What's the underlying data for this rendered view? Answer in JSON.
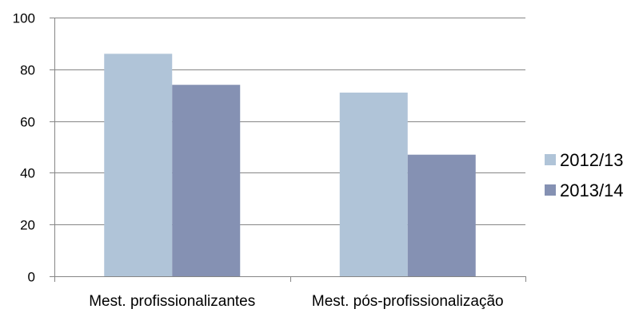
{
  "chart_data": {
    "type": "bar",
    "categories": [
      "Mest. profissionalizantes",
      "Mest. pós-profissionalização"
    ],
    "series": [
      {
        "name": "2012/13",
        "values": [
          86,
          71
        ],
        "color": "#b0c4d8"
      },
      {
        "name": "2013/14",
        "values": [
          74,
          47
        ],
        "color": "#8591b3"
      }
    ],
    "ylim": [
      0,
      100
    ],
    "yticks": [
      0,
      20,
      40,
      60,
      80,
      100
    ],
    "grid": true,
    "legend_position": "right",
    "title": "",
    "xlabel": "",
    "ylabel": ""
  }
}
